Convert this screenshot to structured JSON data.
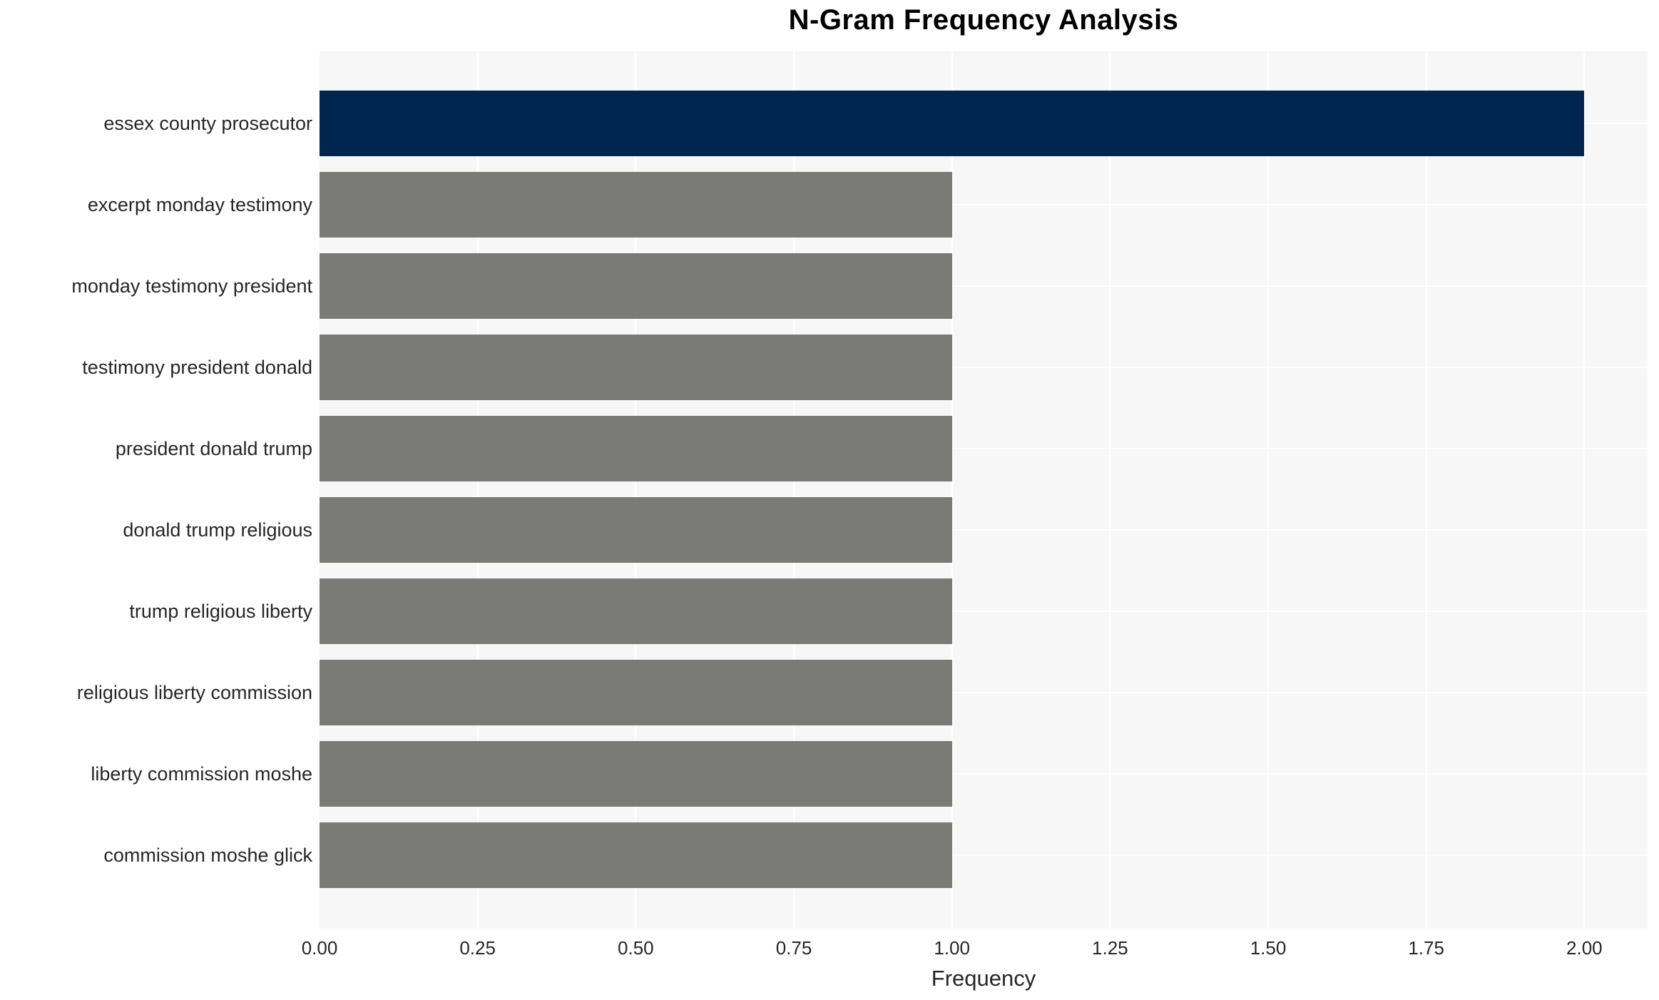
{
  "chart_data": {
    "type": "bar",
    "orientation": "horizontal",
    "title": "N-Gram Frequency Analysis",
    "xlabel": "Frequency",
    "ylabel": "",
    "categories": [
      "essex county prosecutor",
      "excerpt monday testimony",
      "monday testimony president",
      "testimony president donald",
      "president donald trump",
      "donald trump religious",
      "trump religious liberty",
      "religious liberty commission",
      "liberty commission moshe",
      "commission moshe glick"
    ],
    "values": [
      2,
      1,
      1,
      1,
      1,
      1,
      1,
      1,
      1,
      1
    ],
    "xlim": [
      0,
      2.1
    ],
    "xtick_values": [
      0,
      0.25,
      0.5,
      0.75,
      1.0,
      1.25,
      1.5,
      1.75,
      2.0
    ],
    "xtick_labels": [
      "0.00",
      "0.25",
      "0.50",
      "0.75",
      "1.00",
      "1.25",
      "1.50",
      "1.75",
      "2.00"
    ],
    "grid": true,
    "legend": false,
    "colors": {
      "highlight_bar": "#00254e",
      "default_bar": "#7a7a77",
      "plot_background": "#f7f7f7",
      "gridline": "#ffffff",
      "text": "#262626",
      "title_text": "#000000"
    },
    "bar_colors": [
      "#00254e",
      "#7a7a77",
      "#7a7a77",
      "#7a7a77",
      "#7a7a77",
      "#7a7a77",
      "#7a7a77",
      "#7a7a77",
      "#7a7a77",
      "#7a7a77"
    ]
  }
}
